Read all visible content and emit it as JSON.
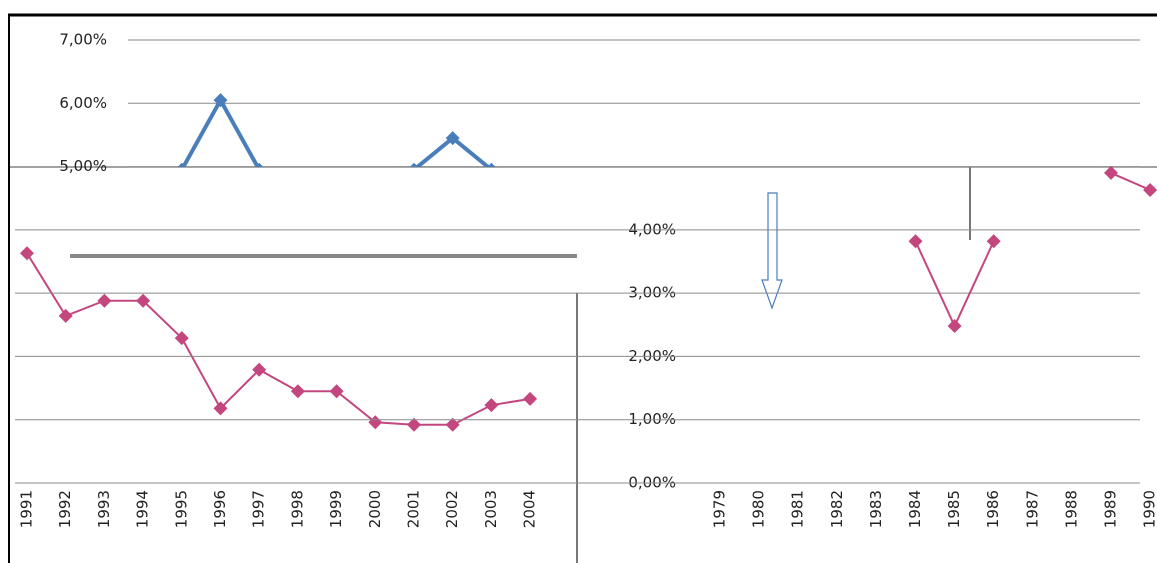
{
  "chart_data": [
    {
      "type": "line",
      "categories": [
        "1991",
        "1992",
        "1993",
        "1994",
        "1995",
        "1996",
        "1997",
        "1998",
        "1999",
        "2000",
        "2001",
        "2002",
        "2003",
        "2004"
      ],
      "series": [
        {
          "color": "#4a7ebb",
          "values": [
            null,
            null,
            null,
            null,
            4.95,
            6.05,
            4.95,
            null,
            null,
            null,
            4.95,
            5.45,
            4.95,
            null
          ]
        },
        {
          "color": "#c4467f",
          "values": [
            3.63,
            2.64,
            2.88,
            2.88,
            2.29,
            1.18,
            1.79,
            1.45,
            1.45,
            0.96,
            0.92,
            0.92,
            1.23,
            1.33
          ]
        }
      ],
      "ylim": [
        0,
        7
      ],
      "yticks": [
        {
          "value": 5,
          "label": "5,00%"
        },
        {
          "value": 6,
          "label": "6,00%"
        },
        {
          "value": 7,
          "label": "7,00%"
        }
      ],
      "grid": true
    },
    {
      "type": "line",
      "categories": [
        "1979",
        "1980",
        "1981",
        "1982",
        "1983",
        "1984",
        "1985",
        "1986",
        "1987",
        "1988",
        "1989",
        "1990"
      ],
      "series": [
        {
          "color": "#c4467f",
          "values": [
            null,
            null,
            null,
            null,
            null,
            3.82,
            2.48,
            3.82,
            null,
            null,
            4.9,
            4.63
          ]
        }
      ],
      "ylim": [
        0,
        7
      ],
      "yticks": [
        {
          "value": 0,
          "label": "0,00%"
        },
        {
          "value": 1,
          "label": "1,00%"
        },
        {
          "value": 2,
          "label": "2,00%"
        },
        {
          "value": 3,
          "label": "3,00%"
        },
        {
          "value": 4,
          "label": "4,00%"
        }
      ],
      "grid": true
    }
  ]
}
